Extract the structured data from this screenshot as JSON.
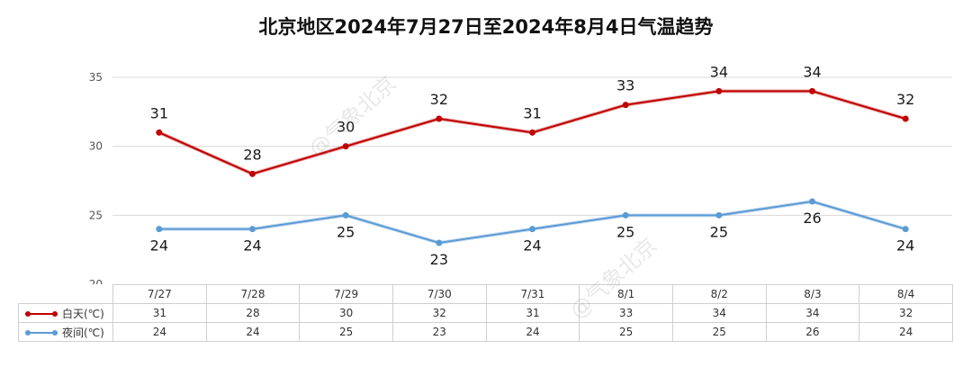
{
  "chart_data": {
    "type": "line",
    "title": "北京地区2024年7月27日至2024年8月4日气温趋势",
    "categories": [
      "7/27",
      "7/28",
      "7/29",
      "7/30",
      "7/31",
      "8/1",
      "8/2",
      "8/3",
      "8/4"
    ],
    "series": [
      {
        "name": "白天(℃)",
        "values": [
          31,
          28,
          30,
          32,
          31,
          33,
          34,
          34,
          32
        ],
        "color": "#c00000"
      },
      {
        "name": "夜间(℃)",
        "values": [
          24,
          24,
          25,
          23,
          24,
          25,
          25,
          26,
          24
        ],
        "color": "#5b9bd5"
      }
    ],
    "yticks": [
      20,
      25,
      30,
      35
    ],
    "ylim": [
      20,
      35
    ],
    "xlabel": "",
    "ylabel": "",
    "grid": true,
    "legend": "data table below chart, left column",
    "data_labels": true
  },
  "watermark": "@气象北京"
}
